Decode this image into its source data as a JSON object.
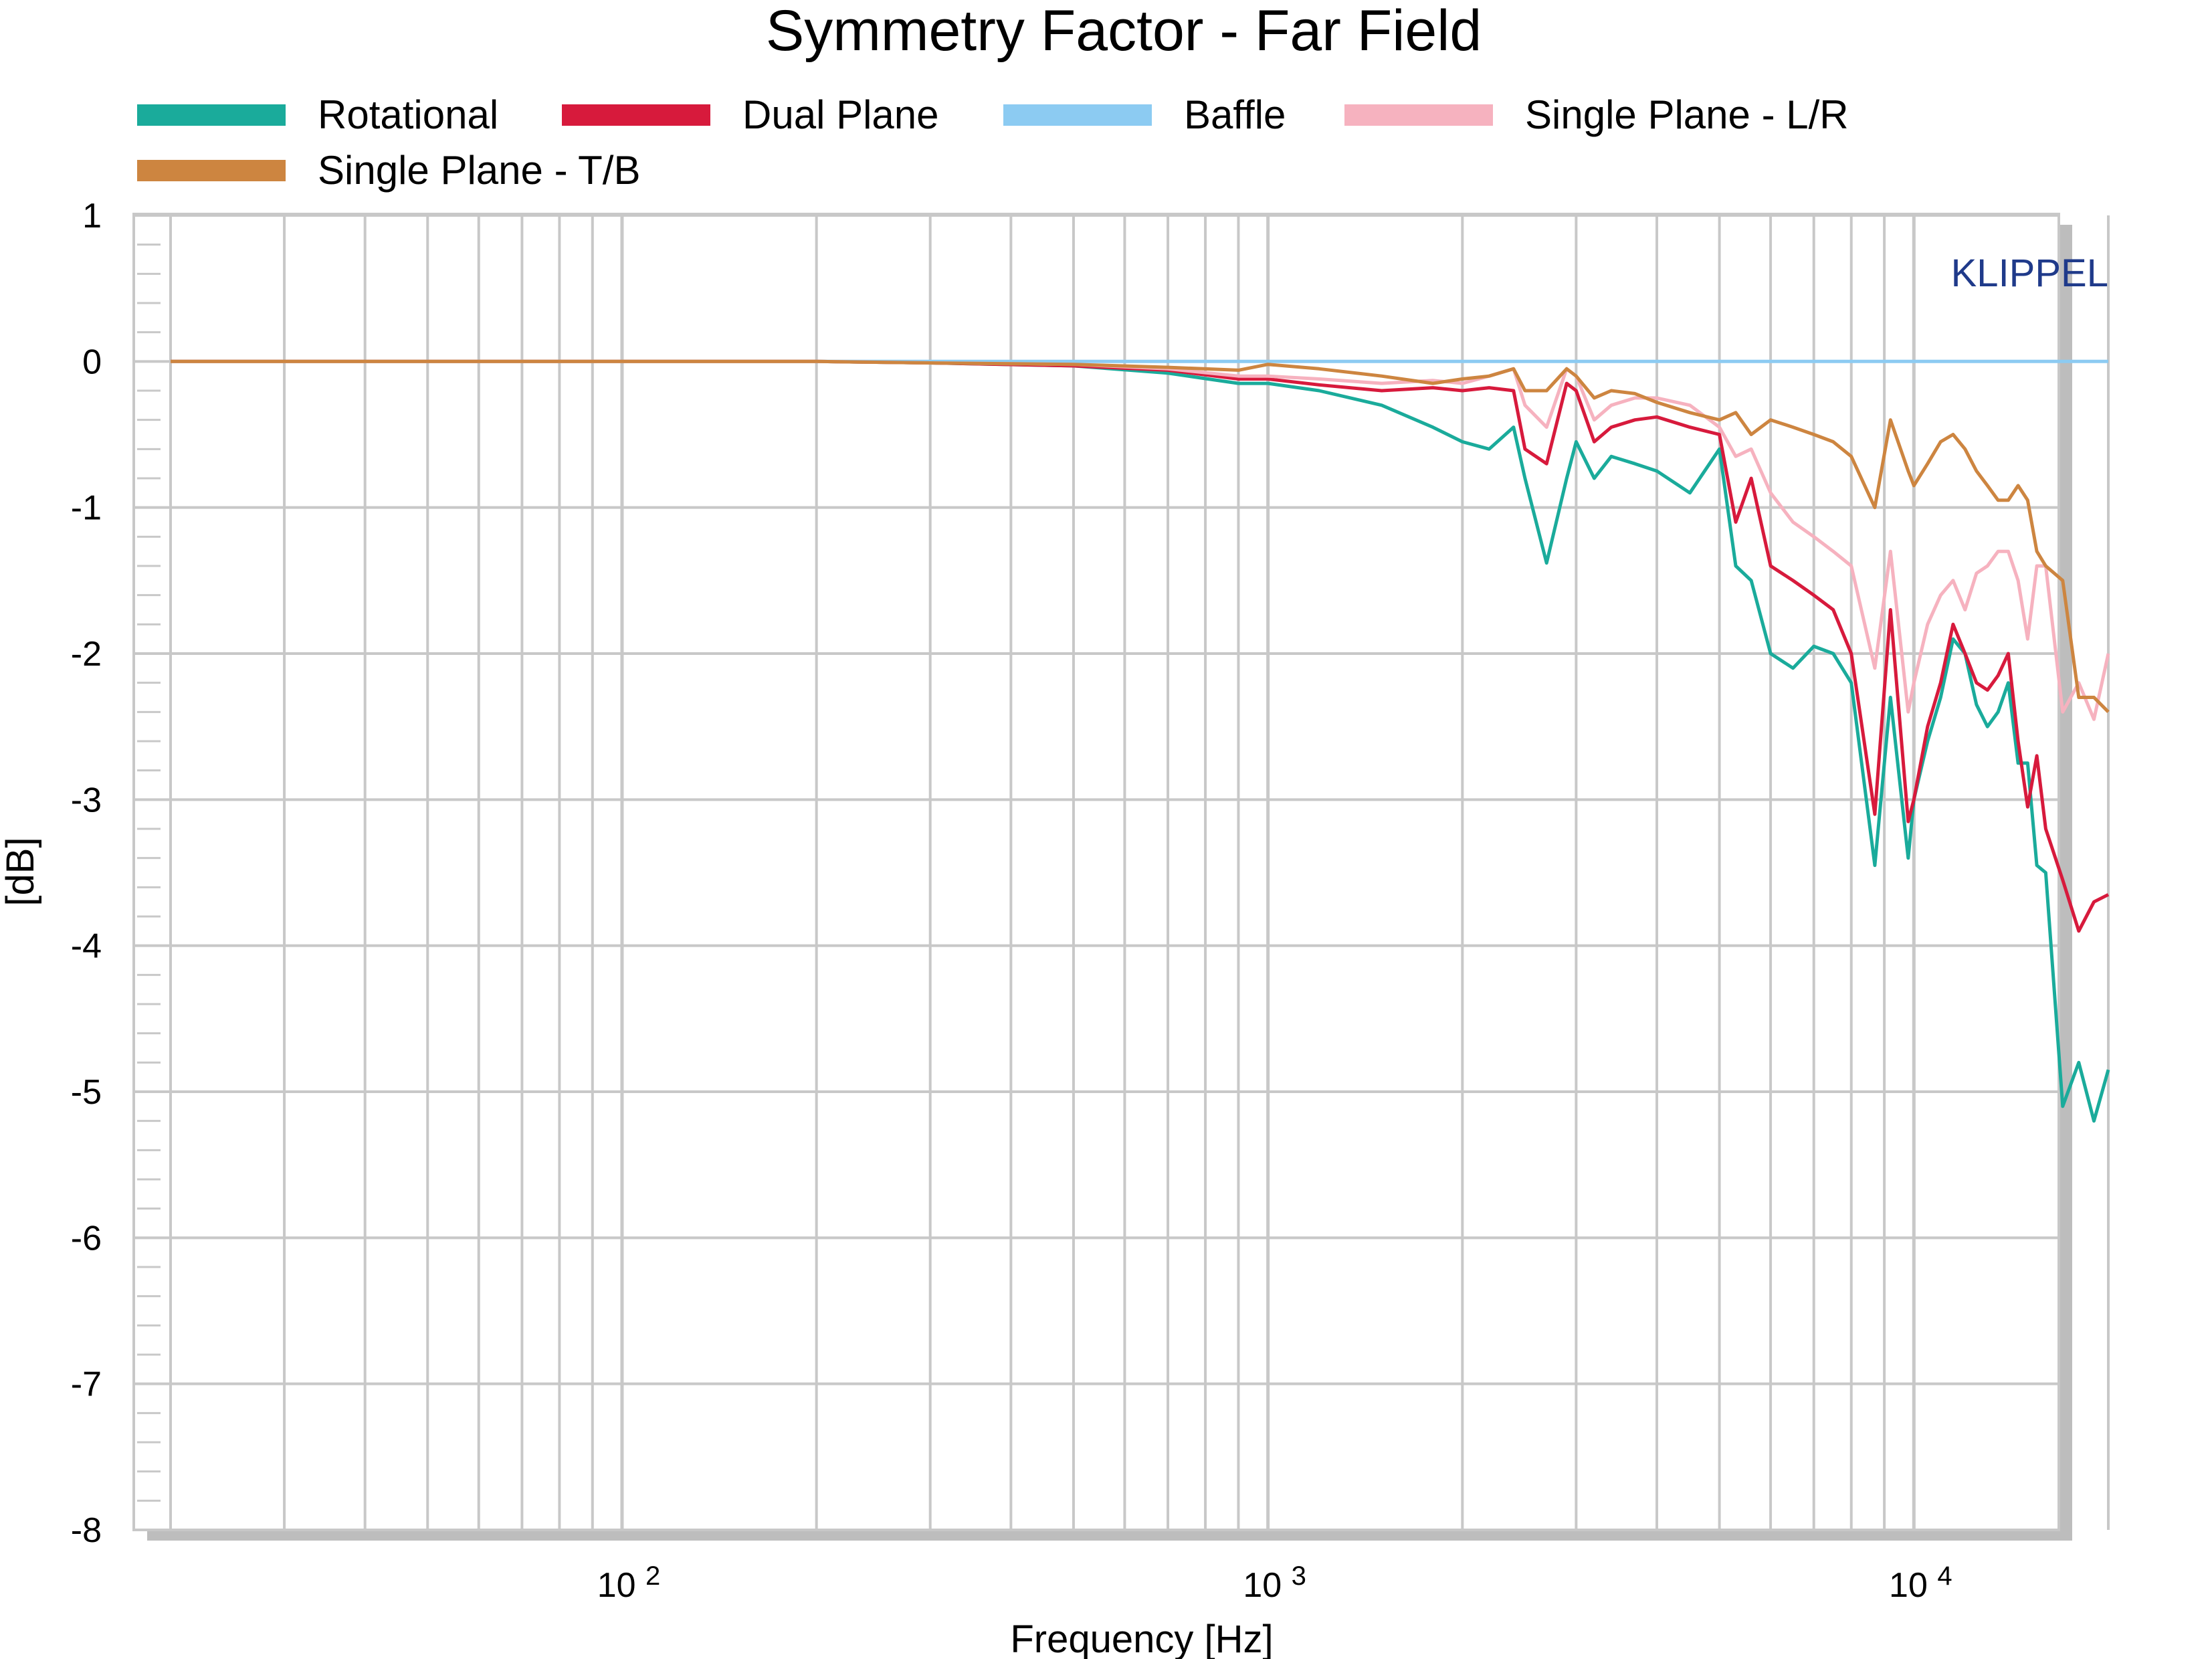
{
  "chart_data": {
    "type": "line",
    "title": "Symmetry Factor - Far Field",
    "xlabel": "Frequency [Hz]",
    "ylabel": "[dB]",
    "xscale": "log",
    "xlim": [
      20,
      20000
    ],
    "ylim": [
      -8,
      1
    ],
    "y_ticks": [
      "1",
      "0",
      "-1",
      "-2",
      "-3",
      "-4",
      "-5",
      "-6",
      "-7",
      "-8"
    ],
    "x_ticks": [
      {
        "base": "10",
        "exp": "2"
      },
      {
        "base": "10",
        "exp": "3"
      },
      {
        "base": "10",
        "exp": "4"
      }
    ],
    "grid": true,
    "legend_position": "top",
    "watermark": "KLIPPEL",
    "series": [
      {
        "name": "Rotational",
        "color": "#1aab9b",
        "x": [
          20,
          50,
          100,
          200,
          300,
          500,
          700,
          900,
          1000,
          1200,
          1500,
          1800,
          2000,
          2200,
          2400,
          2500,
          2700,
          2900,
          3000,
          3200,
          3400,
          3700,
          4000,
          4500,
          5000,
          5300,
          5600,
          6000,
          6500,
          7000,
          7500,
          8000,
          8700,
          9200,
          9800,
          10000,
          10500,
          11000,
          11500,
          12000,
          12500,
          13000,
          13500,
          14000,
          14500,
          15000,
          15500,
          16000,
          17000,
          18000,
          19000,
          20000
        ],
        "y": [
          0,
          0,
          0,
          0,
          -0.01,
          -0.03,
          -0.08,
          -0.15,
          -0.15,
          -0.2,
          -0.3,
          -0.45,
          -0.55,
          -0.6,
          -0.45,
          -0.8,
          -1.38,
          -0.8,
          -0.55,
          -0.8,
          -0.65,
          -0.7,
          -0.75,
          -0.9,
          -0.6,
          -1.4,
          -1.5,
          -2.0,
          -2.1,
          -1.95,
          -2.0,
          -2.2,
          -3.45,
          -2.3,
          -3.4,
          -3.0,
          -2.6,
          -2.3,
          -1.9,
          -2.0,
          -2.35,
          -2.5,
          -2.4,
          -2.2,
          -2.75,
          -2.75,
          -3.45,
          -3.5,
          -5.1,
          -4.8,
          -5.2,
          -4.85
        ]
      },
      {
        "name": "Dual Plane",
        "color": "#d71a3c",
        "x": [
          20,
          50,
          100,
          200,
          300,
          500,
          700,
          900,
          1000,
          1200,
          1500,
          1800,
          2000,
          2200,
          2400,
          2500,
          2700,
          2900,
          3000,
          3200,
          3400,
          3700,
          4000,
          4500,
          5000,
          5300,
          5600,
          6000,
          6500,
          7000,
          7500,
          8000,
          8700,
          9200,
          9800,
          10000,
          10500,
          11000,
          11500,
          12000,
          12500,
          13000,
          13500,
          14000,
          14500,
          15000,
          15500,
          16000,
          17000,
          18000,
          19000,
          20000
        ],
        "y": [
          0,
          0,
          0,
          0,
          -0.01,
          -0.03,
          -0.06,
          -0.12,
          -0.12,
          -0.16,
          -0.2,
          -0.18,
          -0.2,
          -0.18,
          -0.2,
          -0.6,
          -0.7,
          -0.15,
          -0.2,
          -0.55,
          -0.45,
          -0.4,
          -0.38,
          -0.45,
          -0.5,
          -1.1,
          -0.8,
          -1.4,
          -1.5,
          -1.6,
          -1.7,
          -2.0,
          -3.1,
          -1.7,
          -3.15,
          -3.0,
          -2.5,
          -2.2,
          -1.8,
          -2.0,
          -2.2,
          -2.25,
          -2.15,
          -2.0,
          -2.6,
          -3.05,
          -2.7,
          -3.2,
          -3.55,
          -3.9,
          -3.7,
          -3.65
        ]
      },
      {
        "name": "Baffle",
        "color": "#8ccbf2",
        "x": [
          20,
          100,
          1000,
          10000,
          20000
        ],
        "y": [
          0,
          0,
          0,
          0,
          0
        ]
      },
      {
        "name": "Single Plane - L/R",
        "color": "#f6b2bf",
        "x": [
          20,
          50,
          100,
          200,
          300,
          500,
          700,
          900,
          1000,
          1200,
          1500,
          1800,
          2000,
          2200,
          2400,
          2500,
          2700,
          2900,
          3000,
          3200,
          3400,
          3700,
          4000,
          4500,
          5000,
          5300,
          5600,
          6000,
          6500,
          7000,
          7500,
          8000,
          8700,
          9200,
          9800,
          10000,
          10500,
          11000,
          11500,
          12000,
          12500,
          13000,
          13500,
          14000,
          14500,
          15000,
          15500,
          16000,
          17000,
          18000,
          19000,
          20000
        ],
        "y": [
          0,
          0,
          0,
          0,
          -0.01,
          -0.02,
          -0.05,
          -0.1,
          -0.1,
          -0.12,
          -0.15,
          -0.13,
          -0.15,
          -0.1,
          -0.05,
          -0.3,
          -0.45,
          -0.05,
          -0.1,
          -0.4,
          -0.3,
          -0.25,
          -0.25,
          -0.3,
          -0.45,
          -0.65,
          -0.6,
          -0.9,
          -1.1,
          -1.2,
          -1.3,
          -1.4,
          -2.1,
          -1.3,
          -2.4,
          -2.2,
          -1.8,
          -1.6,
          -1.5,
          -1.7,
          -1.45,
          -1.4,
          -1.3,
          -1.3,
          -1.5,
          -1.9,
          -1.4,
          -1.4,
          -2.4,
          -2.2,
          -2.45,
          -2.0
        ]
      },
      {
        "name": "Single Plane - T/B",
        "color": "#cd8540",
        "x": [
          20,
          50,
          100,
          200,
          300,
          500,
          700,
          900,
          1000,
          1200,
          1500,
          1800,
          2000,
          2200,
          2400,
          2500,
          2700,
          2900,
          3000,
          3200,
          3400,
          3700,
          4000,
          4500,
          5000,
          5300,
          5600,
          6000,
          6500,
          7000,
          7500,
          8000,
          8700,
          9200,
          9800,
          10000,
          10500,
          11000,
          11500,
          12000,
          12500,
          13000,
          13500,
          14000,
          14500,
          15000,
          15500,
          16000,
          17000,
          18000,
          19000,
          20000
        ],
        "y": [
          0,
          0,
          0,
          0,
          -0.01,
          -0.02,
          -0.04,
          -0.06,
          -0.02,
          -0.05,
          -0.1,
          -0.15,
          -0.12,
          -0.1,
          -0.05,
          -0.2,
          -0.2,
          -0.05,
          -0.1,
          -0.25,
          -0.2,
          -0.22,
          -0.28,
          -0.35,
          -0.4,
          -0.35,
          -0.5,
          -0.4,
          -0.45,
          -0.5,
          -0.55,
          -0.65,
          -1.0,
          -0.4,
          -0.75,
          -0.85,
          -0.7,
          -0.55,
          -0.5,
          -0.6,
          -0.75,
          -0.85,
          -0.95,
          -0.95,
          -0.85,
          -0.95,
          -1.3,
          -1.4,
          -1.5,
          -2.3,
          -2.3,
          -2.4
        ]
      }
    ]
  }
}
